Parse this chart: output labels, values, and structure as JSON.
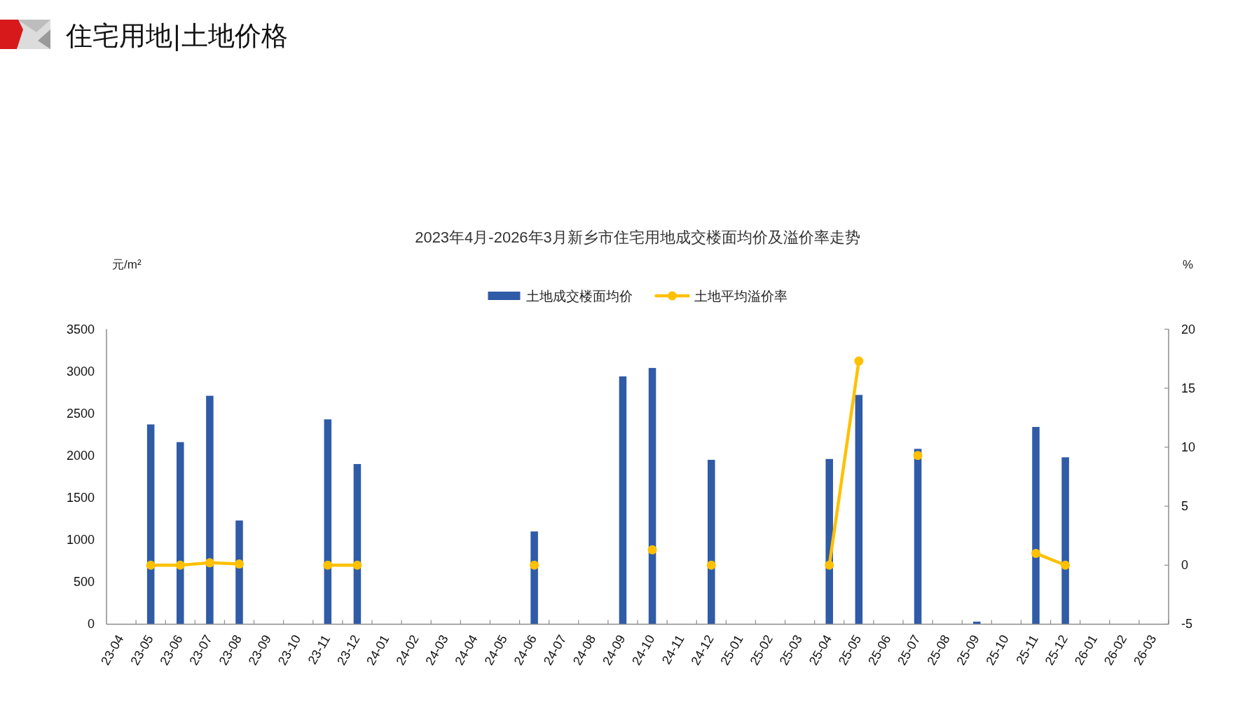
{
  "chart_data": {
    "type": "bar",
    "title": "住宅用地|土地价格",
    "subtitle": "2023年4月-2026年3月新乡市住宅用地成交楼面均价及溢价率走势",
    "ylabel": "元/m²",
    "y2label": "%",
    "categories": [
      "23-04",
      "23-05",
      "23-06",
      "23-07",
      "23-08",
      "23-09",
      "23-10",
      "23-11",
      "23-12",
      "24-01",
      "24-02",
      "24-03",
      "24-04",
      "24-05",
      "24-06",
      "24-07",
      "24-08",
      "24-09",
      "24-10",
      "24-11",
      "24-12",
      "25-01",
      "25-02",
      "25-03",
      "25-04",
      "25-05",
      "25-06",
      "25-07",
      "25-08",
      "25-09",
      "25-10",
      "25-11",
      "25-12",
      "26-01",
      "26-02",
      "26-03"
    ],
    "series": [
      {
        "name": "土地成交楼面均价",
        "color": "#2F5BA7",
        "values": [
          null,
          2370,
          2160,
          2710,
          1230,
          null,
          null,
          2430,
          1900,
          null,
          null,
          null,
          null,
          null,
          1100,
          null,
          null,
          2940,
          3040,
          null,
          1950,
          null,
          null,
          null,
          1960,
          2720,
          null,
          2080,
          null,
          30,
          null,
          2340,
          1980,
          null,
          null,
          null
        ]
      },
      {
        "name": "土地平均溢价率",
        "type": "line",
        "axis": "y2",
        "color": "#FFC000",
        "marker": "circle",
        "values": [
          null,
          0,
          0,
          0.2,
          0.1,
          null,
          null,
          0,
          0,
          null,
          null,
          null,
          null,
          null,
          0,
          null,
          null,
          null,
          1.3,
          null,
          0,
          null,
          null,
          null,
          0,
          17.3,
          null,
          9.3,
          null,
          null,
          null,
          1.0,
          0,
          null,
          null,
          null
        ]
      }
    ],
    "ylim": [
      0,
      3500
    ],
    "yticks": [
      0,
      500,
      1000,
      1500,
      2000,
      2500,
      3000,
      3500
    ],
    "y2lim": [
      -5,
      20
    ],
    "y2ticks": [
      -5,
      0,
      5,
      10,
      15,
      20
    ],
    "legend": "top",
    "grid": false
  }
}
